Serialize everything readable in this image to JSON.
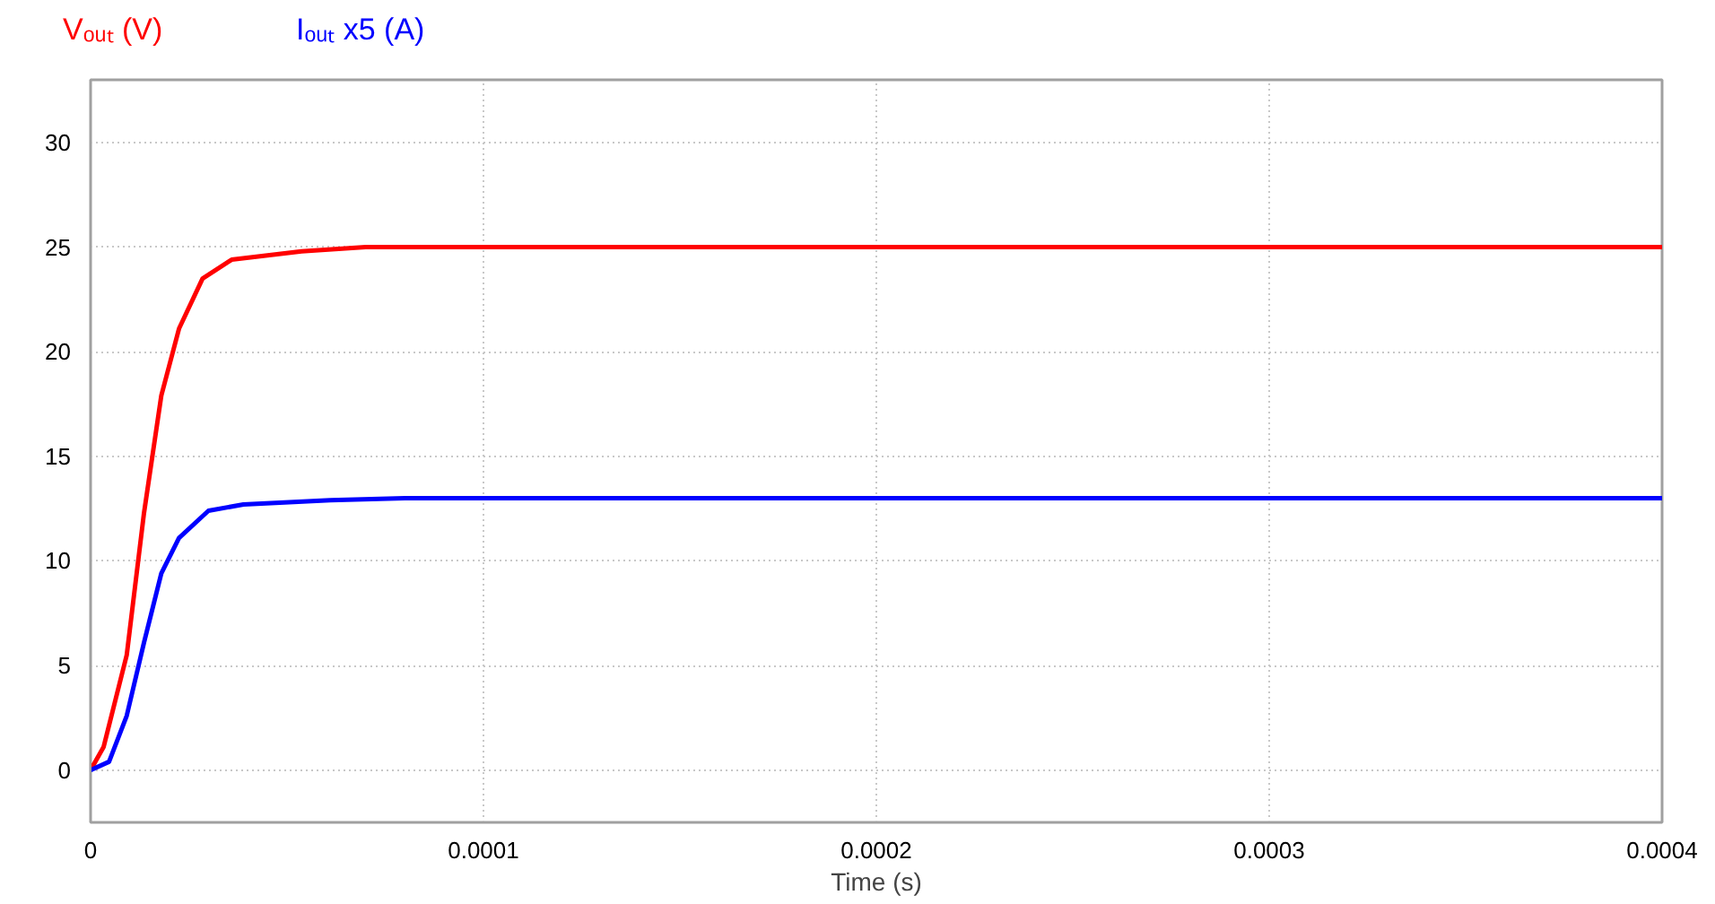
{
  "chart_data": {
    "type": "line",
    "xlabel": "Time (s)",
    "xlim": [
      0,
      0.0004
    ],
    "xticks": [
      0,
      0.0001,
      0.0002,
      0.0003,
      0.0004
    ],
    "ylim": [
      -2.5,
      33
    ],
    "yticks": [
      0,
      5,
      10,
      15,
      20,
      25,
      30
    ],
    "grid": true,
    "series": [
      {
        "name": "Vₒᵤₜ (V)",
        "color": "#ff0000",
        "x": [
          0,
          3.3e-06,
          9.2e-06,
          1.36e-05,
          1.8e-05,
          2.25e-05,
          2.85e-05,
          3.59e-05,
          5.37e-05,
          7e-05,
          0.0001,
          0.0002,
          0.0003,
          0.0004
        ],
        "values": [
          0,
          1.1,
          5.5,
          12.3,
          17.9,
          21.1,
          23.5,
          24.4,
          24.8,
          25,
          25,
          25,
          25,
          25
        ]
      },
      {
        "name": "Iₒᵤₜ x5 (A)",
        "color": "#0000ff",
        "x": [
          0,
          4.7e-06,
          9.2e-06,
          1.36e-05,
          1.8e-05,
          2.25e-05,
          3e-05,
          3.89e-05,
          6.1e-05,
          8e-05,
          0.0001,
          0.0002,
          0.0003,
          0.0004
        ],
        "values": [
          0,
          0.4,
          2.6,
          6.1,
          9.4,
          11.1,
          12.4,
          12.7,
          12.9,
          13,
          13,
          13,
          13,
          13
        ]
      }
    ]
  }
}
